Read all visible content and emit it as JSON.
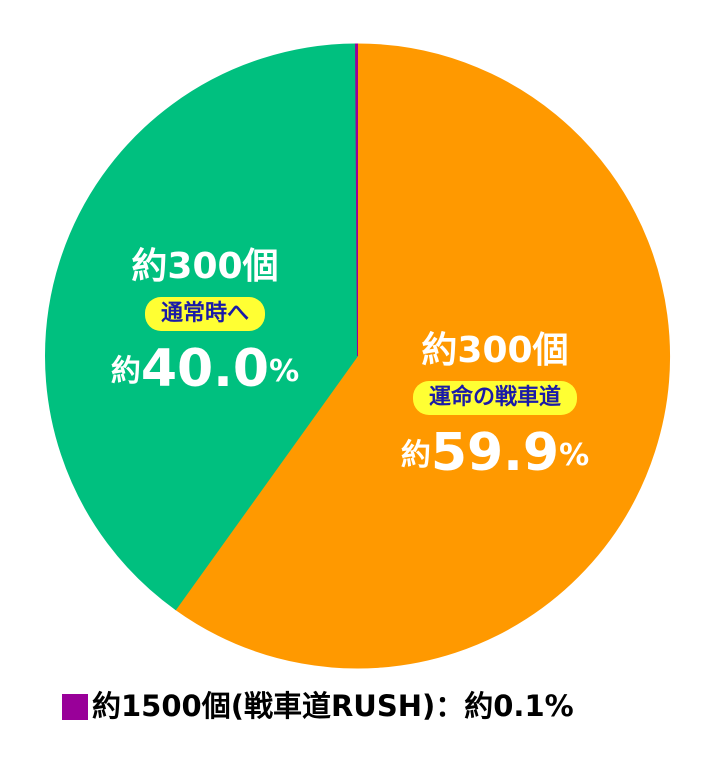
{
  "chart_data": {
    "type": "pie",
    "slices": [
      {
        "name": "運命の戦車道",
        "count": "約300個",
        "value": 59.9,
        "value_label": "約59.9%",
        "color": "#ff9900"
      },
      {
        "name": "通常時へ",
        "count": "約300個",
        "value": 40.0,
        "value_label": "約40.0%",
        "color": "#00c07f"
      },
      {
        "legend_label": "約1500個(戦車道RUSH)：約0.1%",
        "value": 0.1,
        "color": "#990099"
      }
    ]
  }
}
